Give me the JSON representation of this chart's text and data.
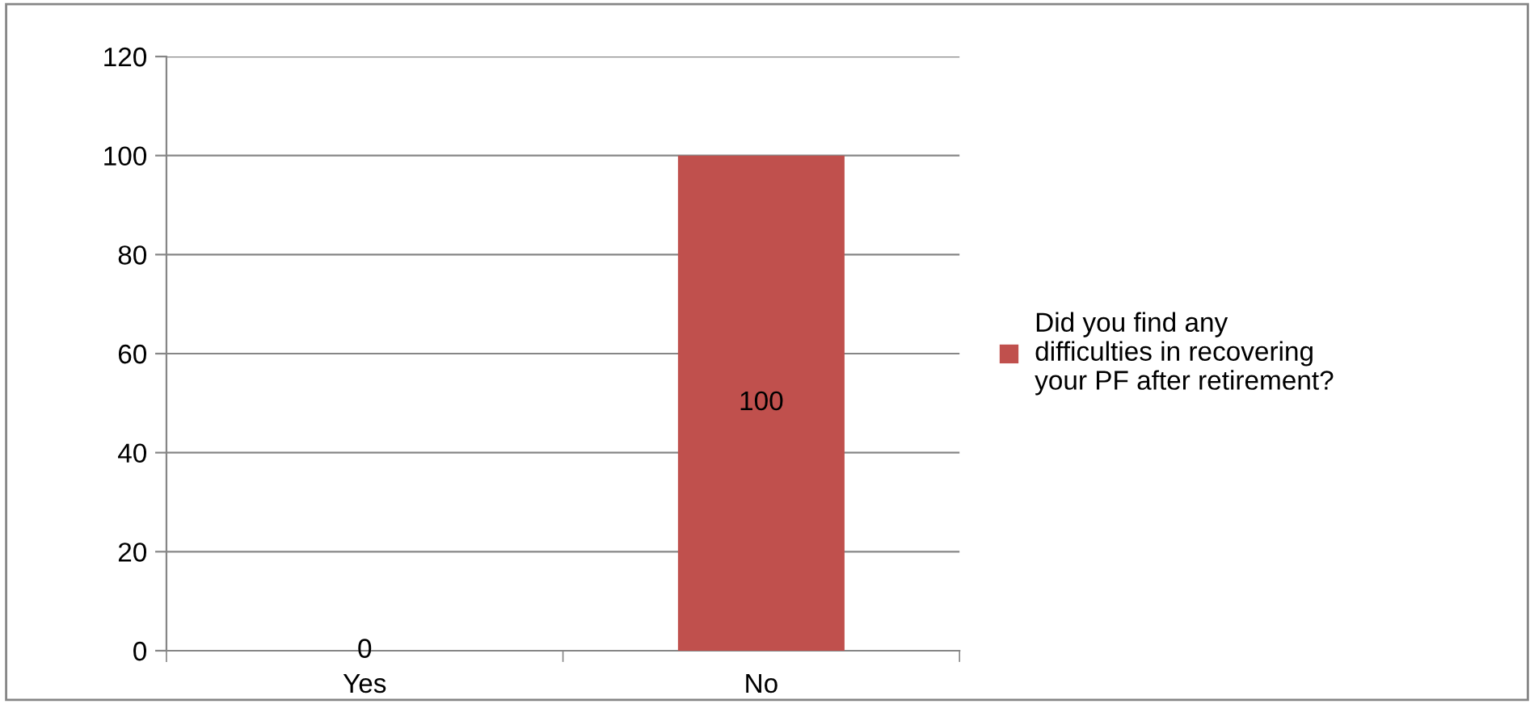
{
  "chart_data": {
    "type": "bar",
    "categories": [
      "Yes",
      "No"
    ],
    "series": [
      {
        "name": "Did you find any\ndifficulties in recovering\nyour PF after retirement?",
        "color": "#c0504d",
        "values": [
          0,
          100
        ]
      }
    ],
    "ylim": [
      0,
      120
    ],
    "yticks": [
      0,
      20,
      40,
      60,
      80,
      100,
      120
    ],
    "grid": "y",
    "legend": "right",
    "data_labels": true
  }
}
